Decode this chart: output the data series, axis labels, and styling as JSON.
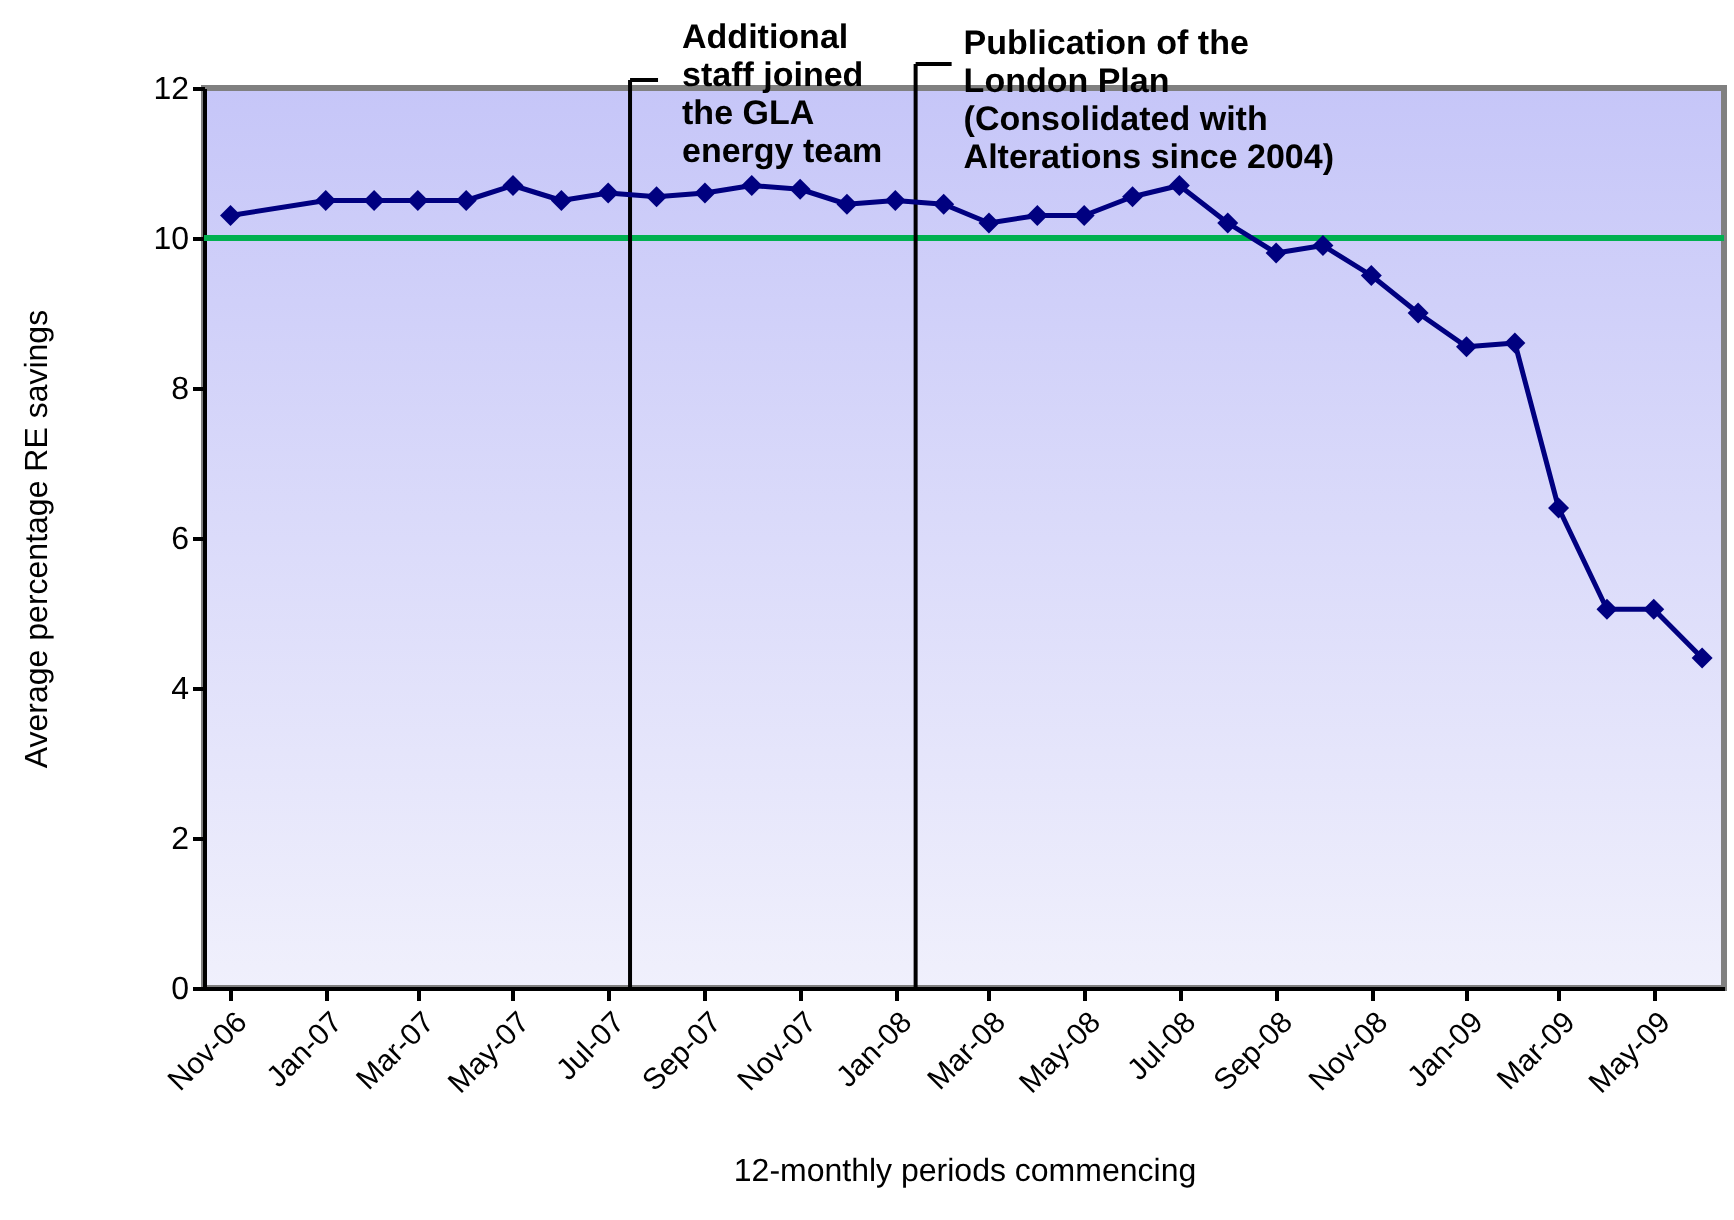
{
  "chart_data": {
    "type": "line",
    "xlabel": "12-monthly periods commencing",
    "ylabel": "Average percentage RE savings",
    "x": [
      "2006-11",
      "2007-01",
      "2007-02",
      "2007-03",
      "2007-04",
      "2007-05",
      "2007-06",
      "2007-07",
      "2007-08",
      "2007-09",
      "2007-10",
      "2007-11",
      "2007-12",
      "2008-01",
      "2008-02",
      "2008-03",
      "2008-04",
      "2008-05",
      "2008-06",
      "2008-07",
      "2008-08",
      "2008-09",
      "2008-10",
      "2008-11",
      "2008-12",
      "2009-01",
      "2009-02",
      "2009-03",
      "2009-04",
      "2009-05",
      "2009-06"
    ],
    "series": [
      {
        "color": "#000080",
        "values": [
          10.3,
          10.5,
          10.5,
          10.5,
          10.5,
          10.7,
          10.5,
          10.6,
          10.55,
          10.6,
          10.7,
          10.65,
          10.45,
          10.5,
          10.45,
          10.2,
          10.3,
          10.3,
          10.55,
          10.7,
          10.2,
          9.8,
          9.9,
          9.5,
          9.0,
          8.55,
          8.6,
          6.4,
          5.05,
          5.05,
          4.4
        ]
      }
    ],
    "xlim": [
      "2006-10-15",
      "2009-06-15"
    ],
    "xticks": [
      {
        "value": "2006-11",
        "label": "Nov-06"
      },
      {
        "value": "2007-01",
        "label": "Jan-07"
      },
      {
        "value": "2007-03",
        "label": "Mar-07"
      },
      {
        "value": "2007-05",
        "label": "May-07"
      },
      {
        "value": "2007-07",
        "label": "Jul-07"
      },
      {
        "value": "2007-09",
        "label": "Sep-07"
      },
      {
        "value": "2007-11",
        "label": "Nov-07"
      },
      {
        "value": "2008-01",
        "label": "Jan-08"
      },
      {
        "value": "2008-03",
        "label": "Mar-08"
      },
      {
        "value": "2008-05",
        "label": "May-08"
      },
      {
        "value": "2008-07",
        "label": "Jul-08"
      },
      {
        "value": "2008-09",
        "label": "Sep-08"
      },
      {
        "value": "2008-11",
        "label": "Nov-08"
      },
      {
        "value": "2009-01",
        "label": "Jan-09"
      },
      {
        "value": "2009-03",
        "label": "Mar-09"
      },
      {
        "value": "2009-05",
        "label": "May-09"
      }
    ],
    "ylim": [
      0,
      12
    ],
    "yticks": [
      0,
      2,
      4,
      6,
      8,
      10,
      12
    ],
    "grid": false,
    "marker": "diamond",
    "line_style": "solid",
    "ref_lines": [
      {
        "axis": "y",
        "value": 10,
        "color": "#00b050"
      },
      {
        "axis": "x",
        "value": "2007-07-15",
        "label": "Additional staff joined the GLA energy team",
        "color": "#000000"
      },
      {
        "axis": "x",
        "value": "2008-01-14",
        "label": "Publication of the London Plan (Consolidated with Alterations since 2004)",
        "color": "#000000"
      }
    ]
  }
}
